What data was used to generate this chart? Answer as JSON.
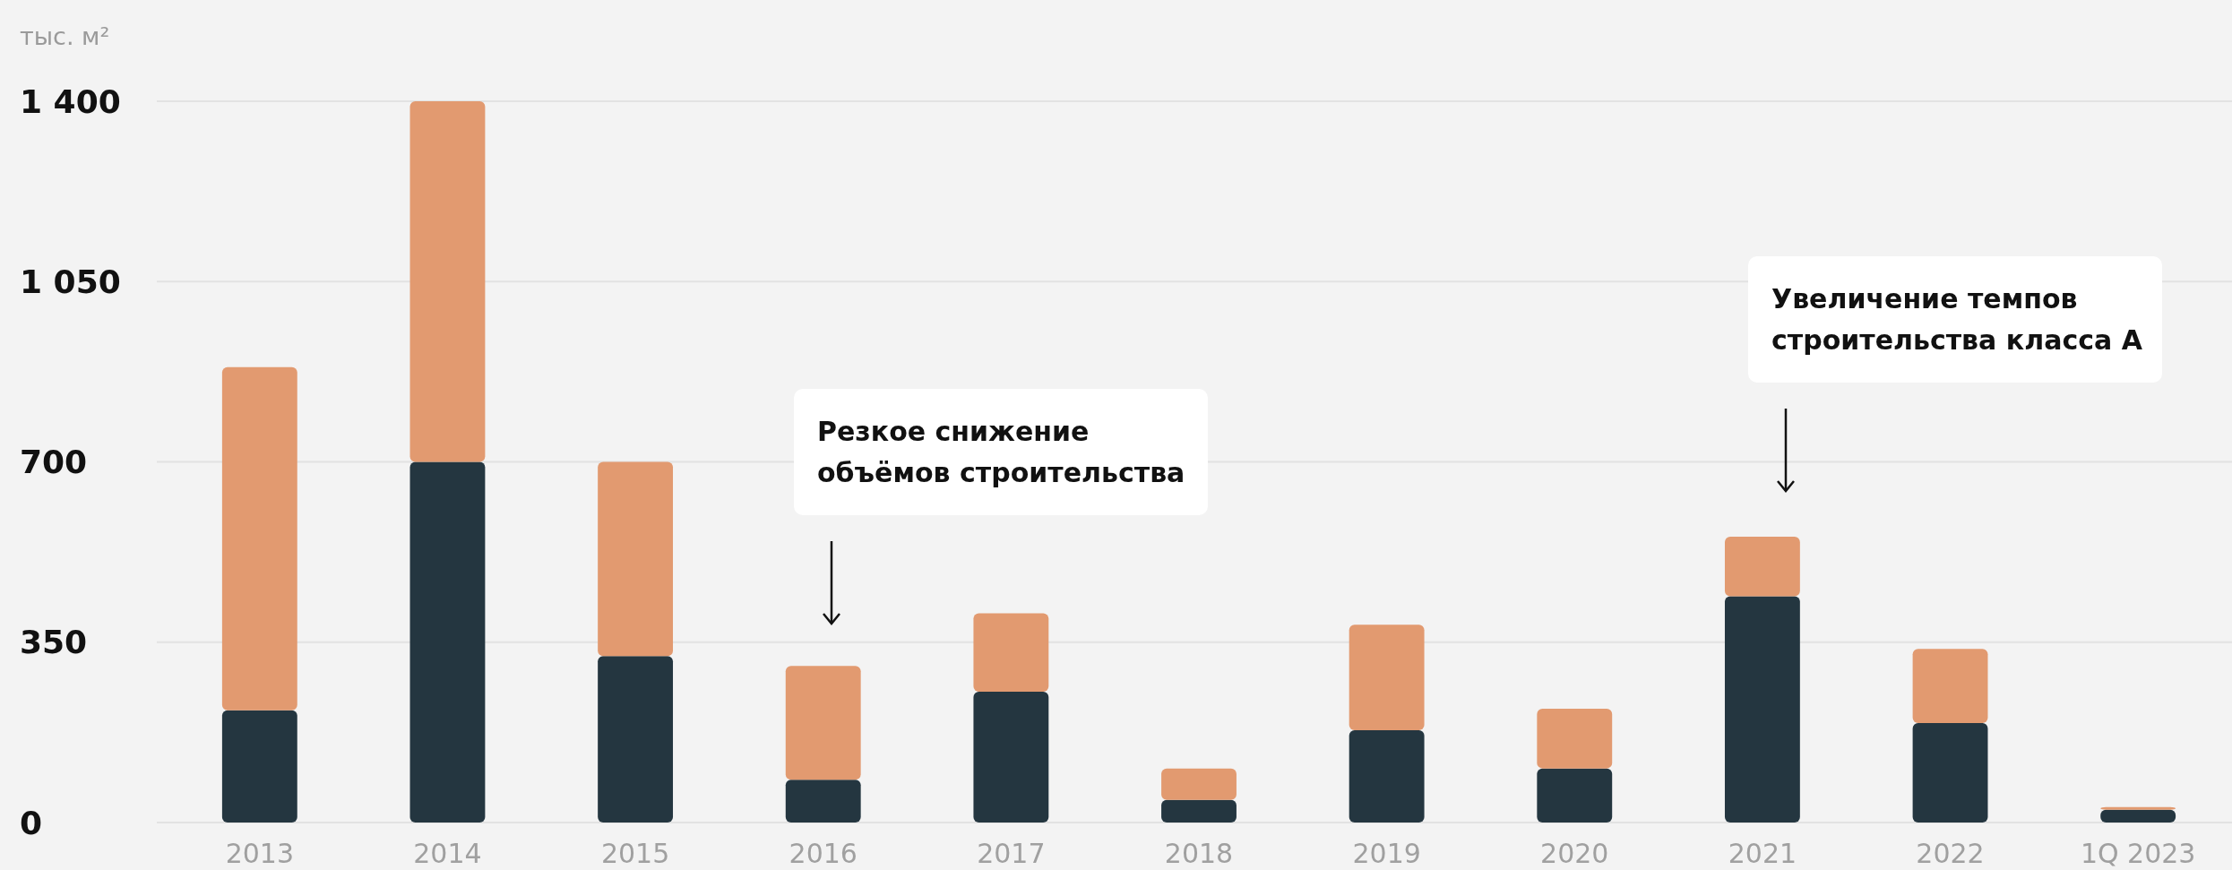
{
  "chart_data": {
    "type": "bar",
    "ylabel": "тыс. м²",
    "categories": [
      "2013",
      "2014",
      "2015",
      "2016",
      "2017",
      "2018",
      "2019",
      "2020",
      "2021",
      "2022",
      "1Q 2023"
    ],
    "stacked": true,
    "series": [
      {
        "color": "#243640",
        "values": [
          218,
          700,
          323,
          83,
          254,
          44,
          179,
          105,
          439,
          193,
          25
        ]
      },
      {
        "color": "#e29a70",
        "values": [
          666,
          700,
          377,
          221,
          152,
          61,
          205,
          116,
          116,
          144,
          5
        ]
      }
    ],
    "ylim": [
      0,
      1400
    ],
    "yticks": [
      {
        "value": 0,
        "label": "0"
      },
      {
        "value": 350,
        "label": "350"
      },
      {
        "value": 700,
        "label": "700"
      },
      {
        "value": 1050,
        "label": "1 050"
      },
      {
        "value": 1400,
        "label": "1 400"
      }
    ],
    "grid": "y",
    "annotations": [
      "Резкое снижение\nобъёмов строительства",
      "Увеличение темпов\nстроительства класса А"
    ]
  }
}
